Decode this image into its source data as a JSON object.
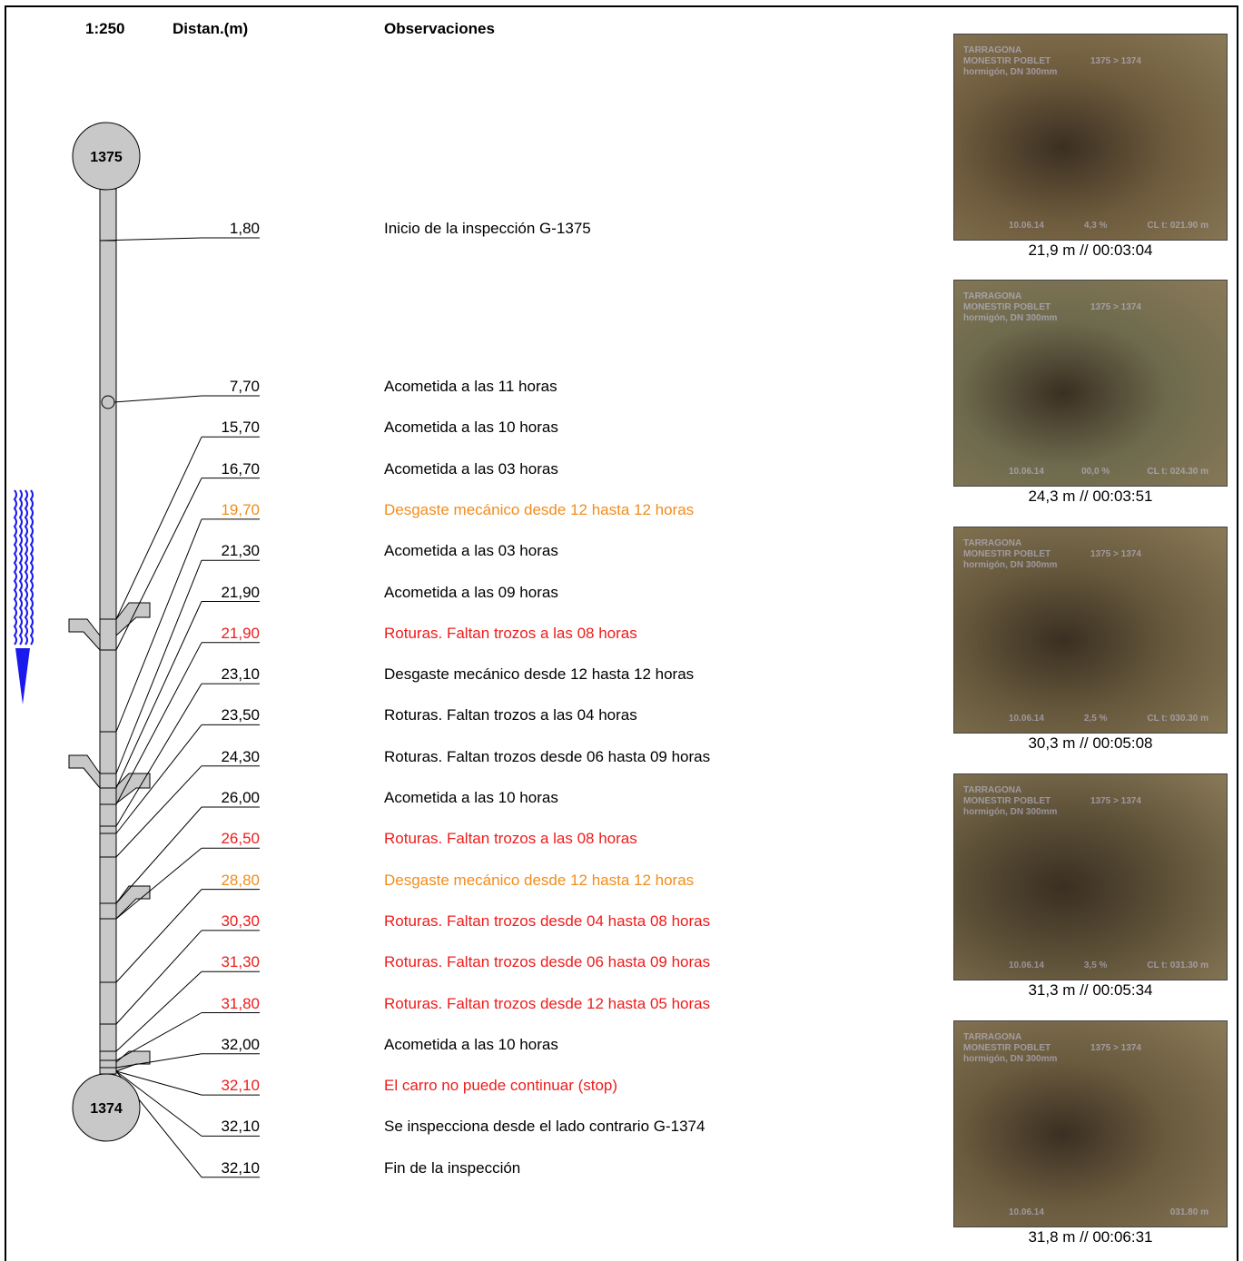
{
  "header": {
    "scale": "1:250",
    "distance": "Distan.(m)",
    "observations": "Observaciones"
  },
  "manholes": {
    "start": "1375",
    "end": "1374"
  },
  "rows": [
    {
      "distance": "1,80",
      "text": "Inicio de la inspección G-1375",
      "status": "normal"
    },
    {
      "distance": "7,70",
      "text": "Acometida a las 11 horas",
      "status": "normal"
    },
    {
      "distance": "15,70",
      "text": "Acometida a las 10 horas",
      "status": "normal"
    },
    {
      "distance": "16,70",
      "text": "Acometida a las 03 horas",
      "status": "normal"
    },
    {
      "distance": "19,70",
      "text": "Desgaste mecánico desde 12 hasta 12 horas",
      "status": "warning"
    },
    {
      "distance": "21,30",
      "text": "Acometida a las 03 horas",
      "status": "normal"
    },
    {
      "distance": "21,90",
      "text": "Acometida a las 09 horas",
      "status": "normal"
    },
    {
      "distance": "21,90",
      "text": "Roturas. Faltan trozos a las 08 horas",
      "status": "defect"
    },
    {
      "distance": "23,10",
      "text": "Desgaste mecánico desde 12 hasta 12 horas",
      "status": "normal"
    },
    {
      "distance": "23,50",
      "text": "Roturas. Faltan trozos a las 04 horas",
      "status": "normal"
    },
    {
      "distance": "24,30",
      "text": "Roturas. Faltan trozos desde 06 hasta 09 horas",
      "status": "normal"
    },
    {
      "distance": "26,00",
      "text": "Acometida a las 10 horas",
      "status": "normal"
    },
    {
      "distance": "26,50",
      "text": "Roturas. Faltan trozos a las 08 horas",
      "status": "defect"
    },
    {
      "distance": "28,80",
      "text": "Desgaste mecánico desde 12 hasta 12 horas",
      "status": "warning"
    },
    {
      "distance": "30,30",
      "text": "Roturas. Faltan trozos desde 04 hasta 08 horas",
      "status": "defect"
    },
    {
      "distance": "31,30",
      "text": "Roturas. Faltan trozos desde 06 hasta 09 horas",
      "status": "defect"
    },
    {
      "distance": "31,80",
      "text": "Roturas. Faltan trozos desde 12 hasta 05 horas",
      "status": "defect"
    },
    {
      "distance": "32,00",
      "text": "Acometida a las 10 horas",
      "status": "normal"
    },
    {
      "distance": "32,10",
      "text": "El carro no puede continuar (stop)",
      "status": "defect"
    },
    {
      "distance": "32,10",
      "text": "Se inspecciona desde el lado contrario G-1374",
      "status": "normal"
    },
    {
      "distance": "32,10",
      "text": "Fin de la inspección",
      "status": "normal"
    }
  ],
  "photos": [
    {
      "caption": "21,9 m // 00:03:04",
      "overlay_left": "10.06.14",
      "overlay_mid": "4,3 %",
      "overlay_right": "CL t: 021.90 m",
      "tone": "#6d5a3c"
    },
    {
      "caption": "24,3 m // 00:03:51",
      "overlay_left": "10.06.14",
      "overlay_mid": "00,0 %",
      "overlay_right": "CL t: 024.30 m",
      "tone": "#6e6a4d"
    },
    {
      "caption": "30,3 m // 00:05:08",
      "overlay_left": "10.06.14",
      "overlay_mid": "2,5 %",
      "overlay_right": "CL t: 030.30 m",
      "tone": "#66583c"
    },
    {
      "caption": "31,3 m // 00:05:34",
      "overlay_left": "10.06.14",
      "overlay_mid": "3,5 %",
      "overlay_right": "CL t: 031.30 m",
      "tone": "#5c5037"
    },
    {
      "caption": "31,8 m // 00:06:31",
      "overlay_left": "10.06.14",
      "overlay_mid": "",
      "overlay_right": "031.80 m",
      "tone": "#6a5a3e"
    }
  ],
  "photo_overlay": {
    "line1": "TARRAGONA",
    "line2": "MONESTIR POBLET",
    "line3": "hormigón, DN 300mm",
    "section": "1375 > 1374"
  },
  "colors": {
    "normal": "#000000",
    "warning": "#f28c1c",
    "defect": "#ee1c1c",
    "pipe": "#c8c8c8",
    "flow_arrow": "#1a1aee"
  }
}
